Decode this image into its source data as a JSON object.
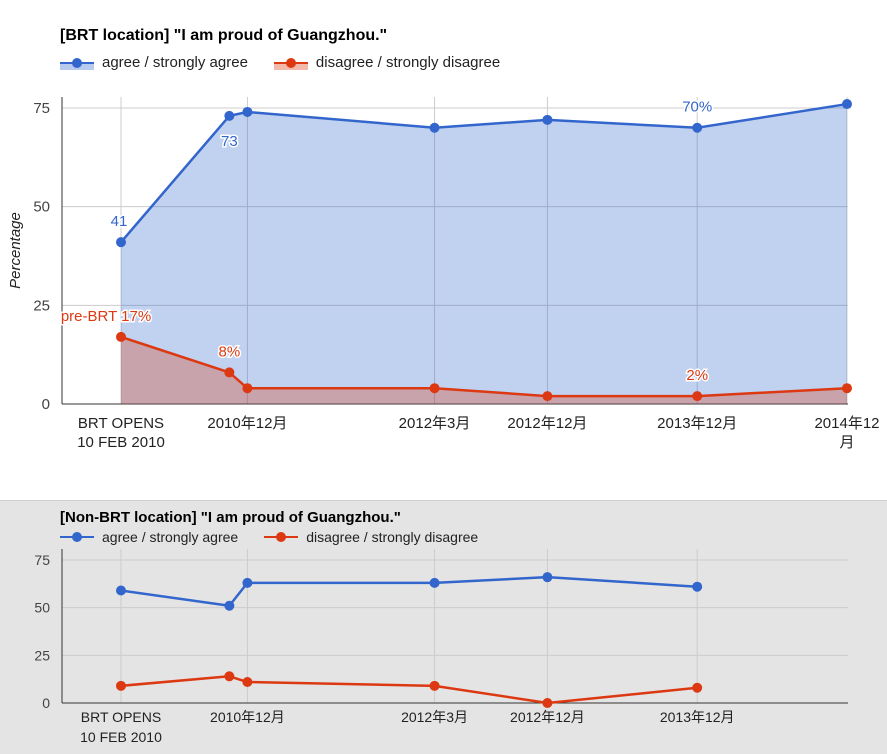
{
  "colors": {
    "agree": "#3366cc",
    "disagree": "#dc3912",
    "grid": "#cccccc",
    "axis": "#333333"
  },
  "top": {
    "title": "[BRT location] \"I am proud of Guangzhou.\"",
    "legend": {
      "agree": "agree / strongly agree",
      "disagree": "disagree / strongly disagree"
    }
  },
  "bottom": {
    "title": "[Non-BRT location] \"I am proud of Guangzhou.\"",
    "legend": {
      "agree": "agree / strongly agree",
      "disagree": "disagree / strongly disagree"
    }
  },
  "chart_data": [
    {
      "type": "area",
      "title": "[BRT location] \"I am proud of Guangzhou.\"",
      "xlabel": "",
      "ylabel": "Percentage",
      "ylim": [
        0,
        75
      ],
      "yticks": [
        0,
        25,
        50,
        75
      ],
      "grid": true,
      "legend_position": "top-left",
      "x_dates": [
        "2010-02-10",
        "2010-11-01",
        "2010-12-15",
        "2012-03-15",
        "2012-12-15",
        "2013-12-15",
        "2014-12-15"
      ],
      "x_tick_dates": [
        "2010-02-10",
        "2010-12-15",
        "2012-03-15",
        "2012-12-15",
        "2013-12-15",
        "2014-12-15"
      ],
      "x_tick_labels": [
        [
          "BRT OPENS",
          "10 FEB 2010"
        ],
        [
          "2010年12月"
        ],
        [
          "2012年3月"
        ],
        [
          "2012年12月"
        ],
        [
          "2013年12月"
        ],
        [
          "2014年12",
          "月"
        ]
      ],
      "series": [
        {
          "name": "agree / strongly agree",
          "values": [
            41,
            73,
            74,
            70,
            72,
            70,
            76
          ]
        },
        {
          "name": "disagree / strongly disagree",
          "values": [
            17,
            8,
            4,
            4,
            2,
            2,
            4
          ]
        }
      ],
      "annotations": [
        {
          "series": 0,
          "index": 0,
          "text": "41"
        },
        {
          "series": 0,
          "index": 1,
          "text": "73"
        },
        {
          "series": 0,
          "index": 5,
          "text": "70%"
        },
        {
          "series": 1,
          "index": 0,
          "text": "pre-BRT 17%"
        },
        {
          "series": 1,
          "index": 1,
          "text": "8%"
        },
        {
          "series": 1,
          "index": 5,
          "text": "2%"
        }
      ]
    },
    {
      "type": "line",
      "title": "[Non-BRT location] \"I am proud of Guangzhou.\"",
      "xlabel": "",
      "ylabel": "",
      "ylim": [
        0,
        75
      ],
      "yticks": [
        0,
        25,
        50,
        75
      ],
      "grid": true,
      "legend_position": "top-left",
      "x_dates": [
        "2010-02-10",
        "2010-11-01",
        "2010-12-15",
        "2012-03-15",
        "2012-12-15",
        "2013-12-15"
      ],
      "x_tick_dates": [
        "2010-02-10",
        "2010-12-15",
        "2012-03-15",
        "2012-12-15",
        "2013-12-15"
      ],
      "x_tick_labels": [
        [
          "BRT OPENS",
          "10 FEB 2010"
        ],
        [
          "2010年12月"
        ],
        [
          "2012年3月"
        ],
        [
          "2012年12月"
        ],
        [
          "2013年12月"
        ]
      ],
      "series": [
        {
          "name": "agree / strongly agree",
          "values": [
            59,
            51,
            63,
            63,
            66,
            61
          ]
        },
        {
          "name": "disagree / strongly disagree",
          "values": [
            9,
            14,
            11,
            9,
            0,
            8
          ]
        }
      ]
    }
  ]
}
